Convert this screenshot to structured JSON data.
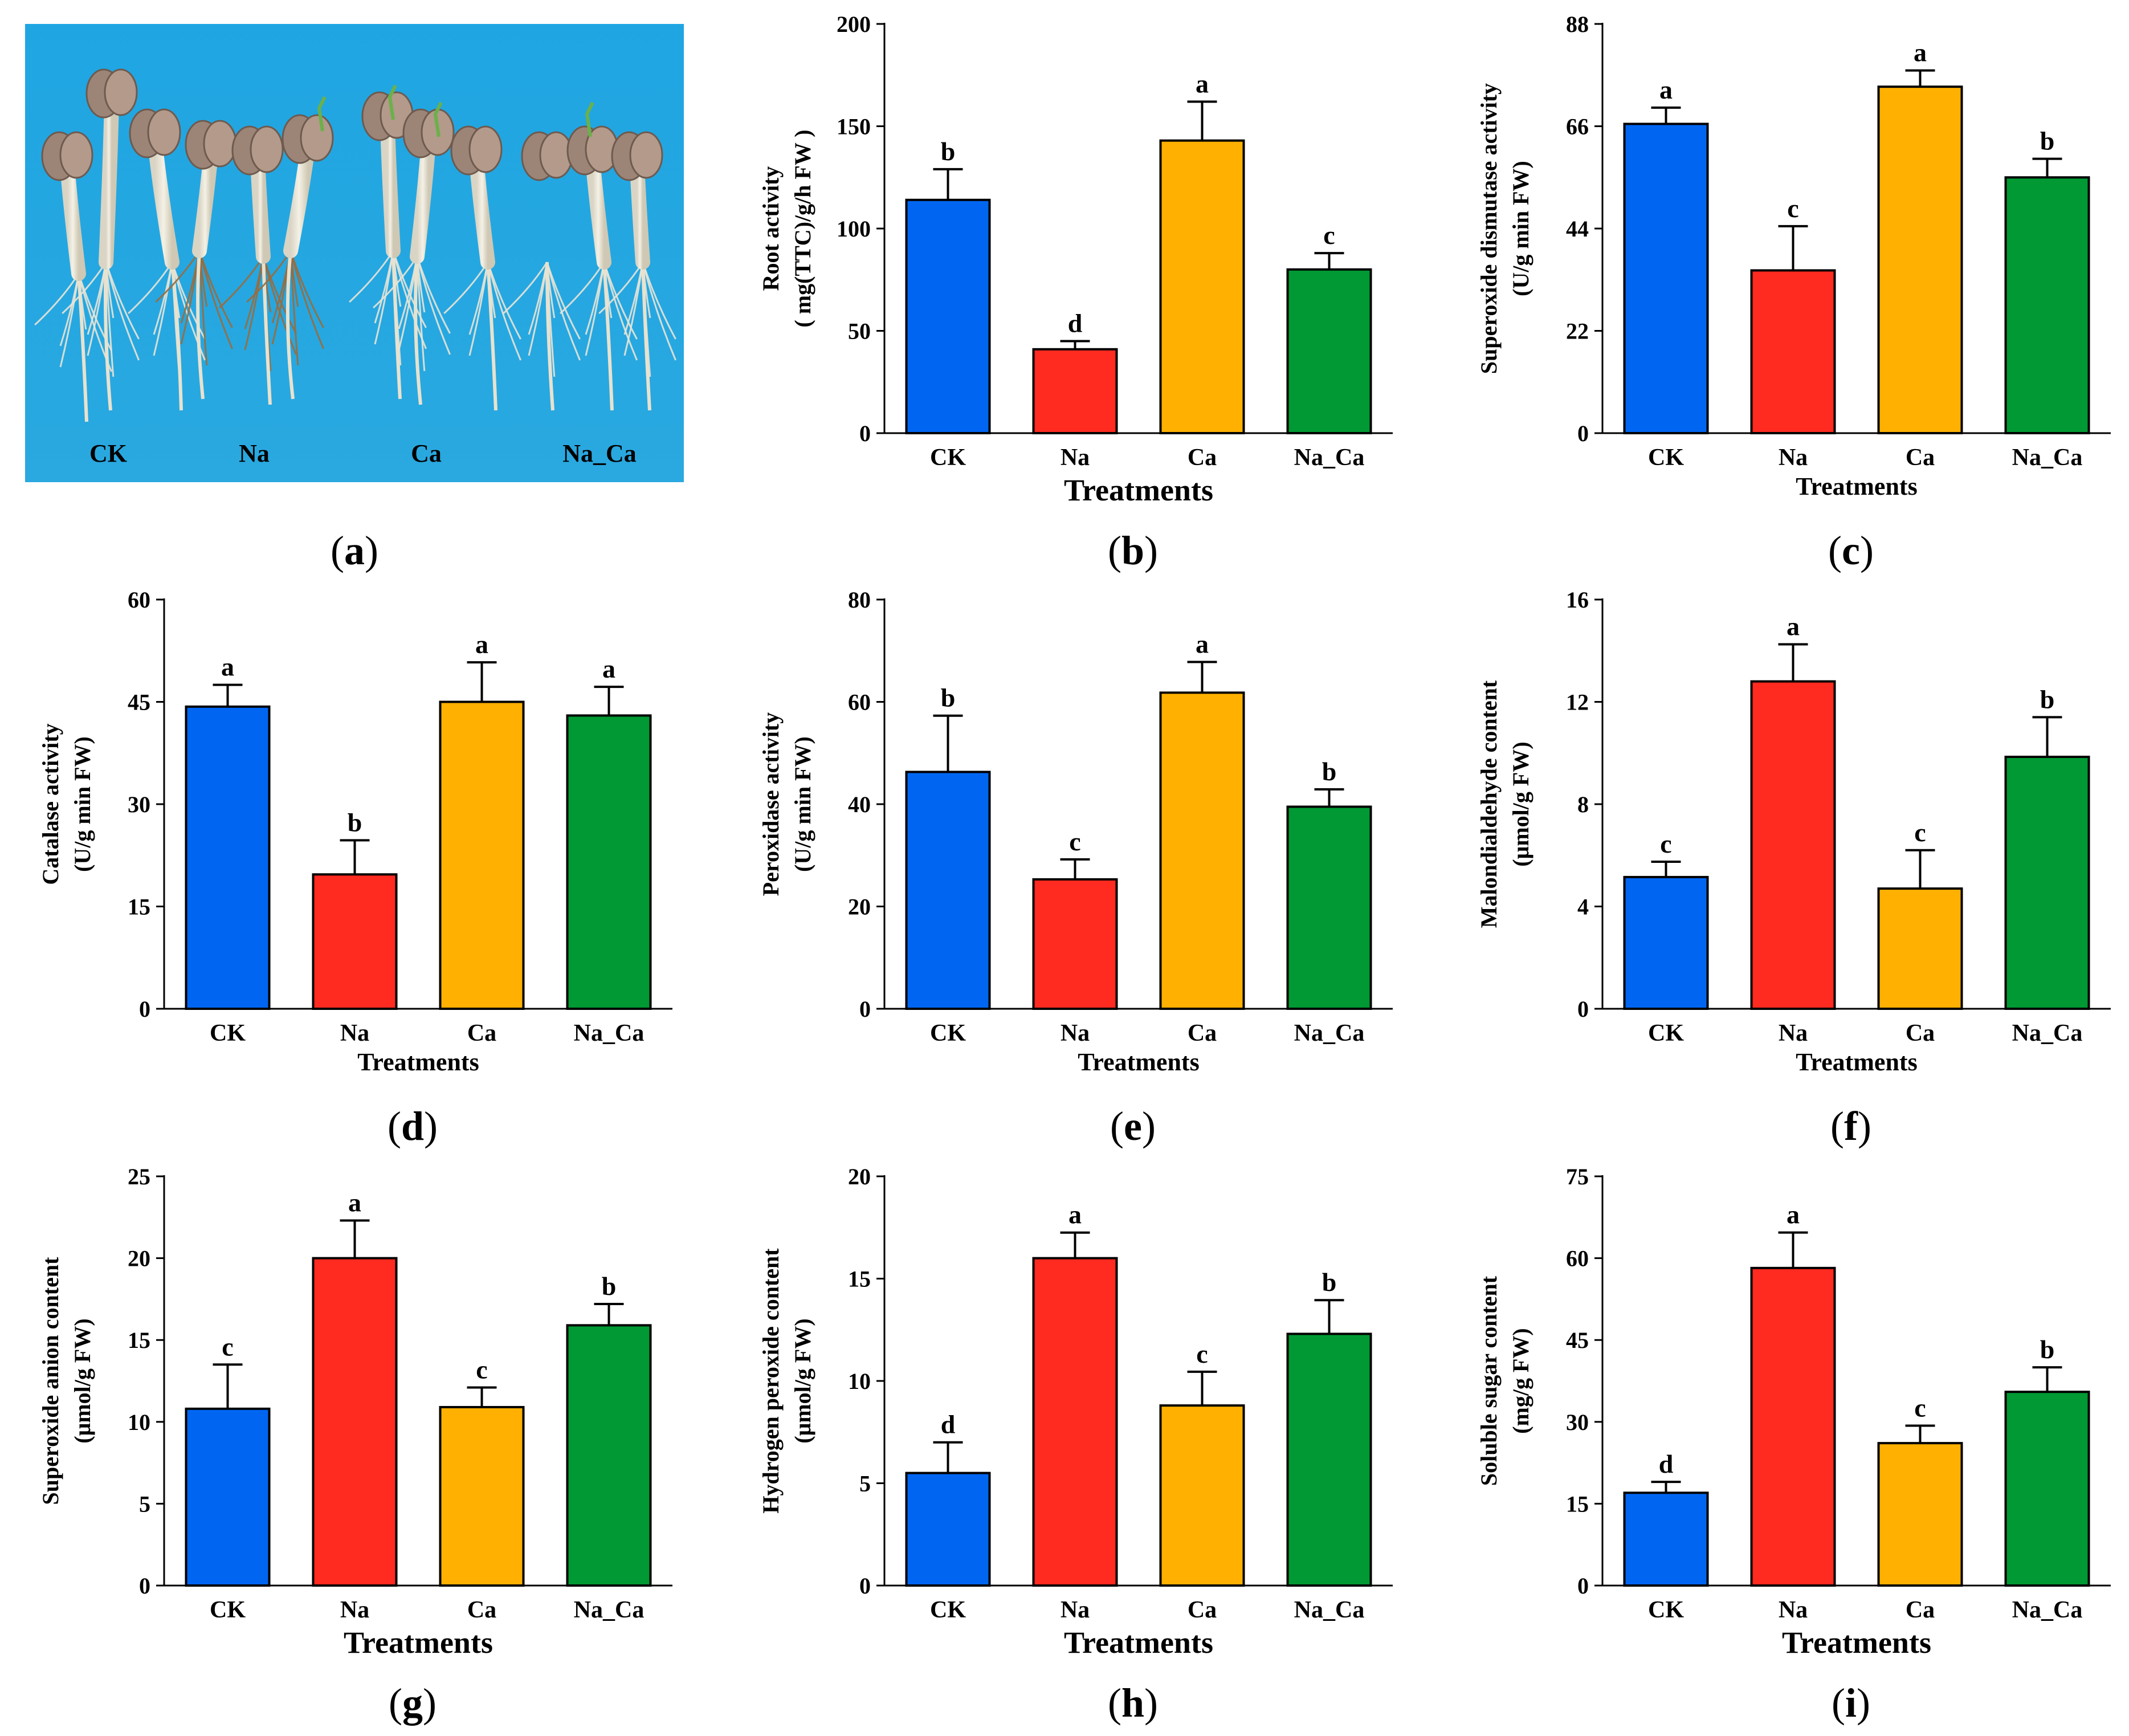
{
  "figure": {
    "photo": {
      "caption_letter": "a",
      "labels": [
        "CK",
        "Na",
        "Ca",
        "Na_Ca"
      ],
      "background_color": "#1fa6e2"
    }
  },
  "colors": [
    "#0066f2",
    "#ff2a20",
    "#ffb000",
    "#009933"
  ],
  "chart_data": [
    {
      "panel": "b",
      "type": "bar",
      "categories": [
        "CK",
        "Na",
        "Ca",
        "Na_Ca"
      ],
      "values": [
        114,
        41,
        143,
        80
      ],
      "errors": [
        15,
        4,
        19,
        8
      ],
      "letters": [
        "b",
        "d",
        "a",
        "c"
      ],
      "ylabel_lines": [
        "Root activity",
        "( mg(TTC)/g/h FW )"
      ],
      "xlabel": "Treatments",
      "xlabel_size": "big",
      "ylim": [
        0,
        200
      ],
      "yticks": [
        0,
        50,
        100,
        150,
        200
      ]
    },
    {
      "panel": "c",
      "type": "bar",
      "categories": [
        "CK",
        "Na",
        "Ca",
        "Na_Ca"
      ],
      "values": [
        66.5,
        35,
        74.5,
        55
      ],
      "errors": [
        3.5,
        9.5,
        3.5,
        4
      ],
      "letters": [
        "a",
        "c",
        "a",
        "b"
      ],
      "ylabel_lines": [
        "Superoxide dismutase activity",
        "(U/g min  FW)"
      ],
      "xlabel": "Treatments",
      "xlabel_size": "small",
      "ylim": [
        0,
        88
      ],
      "yticks": [
        0,
        22,
        44,
        66,
        88
      ]
    },
    {
      "panel": "d",
      "type": "bar",
      "categories": [
        "CK",
        "Na",
        "Ca",
        "Na_Ca"
      ],
      "values": [
        44.3,
        19.7,
        45,
        43
      ],
      "errors": [
        3.2,
        5,
        5.8,
        4.2
      ],
      "letters": [
        "a",
        "b",
        "a",
        "a"
      ],
      "ylabel_lines": [
        "Catalase activity",
        "(U/g min  FW)"
      ],
      "xlabel": "Treatments",
      "xlabel_size": "small",
      "ylim": [
        0,
        60
      ],
      "yticks": [
        0,
        15,
        30,
        45,
        60
      ]
    },
    {
      "panel": "e",
      "type": "bar",
      "categories": [
        "CK",
        "Na",
        "Ca",
        "Na_Ca"
      ],
      "values": [
        46.3,
        25.3,
        61.8,
        39.5
      ],
      "errors": [
        11,
        3.9,
        6,
        3.4
      ],
      "letters": [
        "b",
        "c",
        "a",
        "b"
      ],
      "ylabel_lines": [
        "Peroxidase activity",
        "(U/g min  FW)"
      ],
      "xlabel": "Treatments",
      "xlabel_size": "small",
      "ylim": [
        0,
        80
      ],
      "yticks": [
        0,
        20,
        40,
        60,
        80
      ]
    },
    {
      "panel": "f",
      "type": "bar",
      "categories": [
        "CK",
        "Na",
        "Ca",
        "Na_Ca"
      ],
      "values": [
        5.15,
        12.8,
        4.7,
        9.85
      ],
      "errors": [
        0.6,
        1.45,
        1.5,
        1.55
      ],
      "letters": [
        "c",
        "a",
        "c",
        "b"
      ],
      "ylabel_lines": [
        "Malondialdehyde content",
        "(μmol/g  FW)"
      ],
      "xlabel": "Treatments",
      "xlabel_size": "small",
      "ylim": [
        0,
        16
      ],
      "yticks": [
        0,
        4,
        8,
        12,
        16
      ]
    },
    {
      "panel": "g",
      "type": "bar",
      "categories": [
        "CK",
        "Na",
        "Ca",
        "Na_Ca"
      ],
      "values": [
        10.8,
        20,
        10.9,
        15.9
      ],
      "errors": [
        2.7,
        2.3,
        1.2,
        1.3
      ],
      "letters": [
        "c",
        "a",
        "c",
        "b"
      ],
      "ylabel_lines": [
        "Superoxide anion content",
        "(μmol/g  FW)"
      ],
      "xlabel": "Treatments",
      "xlabel_size": "big",
      "ylim": [
        0,
        25
      ],
      "yticks": [
        0,
        5,
        10,
        15,
        20,
        25
      ]
    },
    {
      "panel": "h",
      "type": "bar",
      "categories": [
        "CK",
        "Na",
        "Ca",
        "Na_Ca"
      ],
      "values": [
        5.5,
        16,
        8.8,
        12.3
      ],
      "errors": [
        1.5,
        1.25,
        1.65,
        1.65
      ],
      "letters": [
        "d",
        "a",
        "c",
        "b"
      ],
      "ylabel_lines": [
        "Hydrogen peroxide content",
        "(μmol/g  FW)"
      ],
      "xlabel": "Treatments",
      "xlabel_size": "big",
      "ylim": [
        0,
        20
      ],
      "yticks": [
        0,
        5,
        10,
        15,
        20
      ]
    },
    {
      "panel": "i",
      "type": "bar",
      "categories": [
        "CK",
        "Na",
        "Ca",
        "Na_Ca"
      ],
      "values": [
        17,
        58.2,
        26.1,
        35.5
      ],
      "errors": [
        2,
        6.5,
        3.2,
        4.5
      ],
      "letters": [
        "d",
        "a",
        "c",
        "b"
      ],
      "ylabel_lines": [
        "Soluble sugar content",
        "(mg/g  FW)"
      ],
      "xlabel": "Treatments",
      "xlabel_size": "big",
      "ylim": [
        0,
        75
      ],
      "yticks": [
        0,
        15,
        30,
        45,
        60,
        75
      ]
    }
  ]
}
